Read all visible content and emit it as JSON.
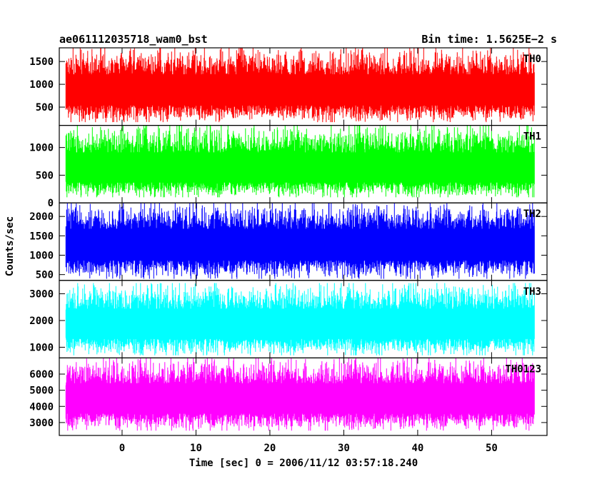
{
  "chart_data": {
    "type": "line",
    "title_left": "ae061112035718_wam0_bst",
    "title_right": "Bin time: 1.5625E−2 s",
    "xlabel": "Time [sec] 0 = 2006/11/12 03:57:18.240",
    "ylabel": "Counts/sec",
    "xlim": [
      -8.5,
      57.5
    ],
    "data_xrange": [
      -7.6,
      55.8
    ],
    "x_ticks": [
      0,
      10,
      20,
      30,
      40,
      50
    ],
    "x_tick_labels": [
      "0",
      "10",
      "20",
      "30",
      "40",
      "50"
    ],
    "grid": false,
    "panels": [
      {
        "name": "TH0",
        "color": "#ff0000",
        "ylim": [
          100,
          1800
        ],
        "y_ticks": [
          500,
          1000,
          1500
        ],
        "y_tick_labels": [
          "500",
          "1000",
          "1500"
        ],
        "mean": 800,
        "low": 170,
        "high": 1800
      },
      {
        "name": "TH1",
        "color": "#00ff00",
        "ylim": [
          0,
          1400
        ],
        "y_ticks": [
          0,
          500,
          1000
        ],
        "y_tick_labels": [
          "0",
          "500",
          "1000"
        ],
        "mean": 560,
        "low": 100,
        "high": 1400
      },
      {
        "name": "TH2",
        "color": "#0000ff",
        "ylim": [
          350,
          2350
        ],
        "y_ticks": [
          500,
          1000,
          1500,
          2000
        ],
        "y_tick_labels": [
          "500",
          "1000",
          "1500",
          "2000"
        ],
        "mean": 1200,
        "low": 390,
        "high": 2350
      },
      {
        "name": "TH3",
        "color": "#00ffff",
        "ylim": [
          600,
          3500
        ],
        "y_ticks": [
          1000,
          2000,
          3000
        ],
        "y_tick_labels": [
          "1000",
          "2000",
          "3000"
        ],
        "mean": 1750,
        "low": 700,
        "high": 3400
      },
      {
        "name": "TH0123",
        "color": "#ff00ff",
        "ylim": [
          2200,
          7000
        ],
        "y_ticks": [
          3000,
          4000,
          5000,
          6000
        ],
        "y_tick_labels": [
          "3000",
          "4000",
          "5000",
          "6000"
        ],
        "mean": 4300,
        "low": 2500,
        "high": 7000
      }
    ]
  }
}
